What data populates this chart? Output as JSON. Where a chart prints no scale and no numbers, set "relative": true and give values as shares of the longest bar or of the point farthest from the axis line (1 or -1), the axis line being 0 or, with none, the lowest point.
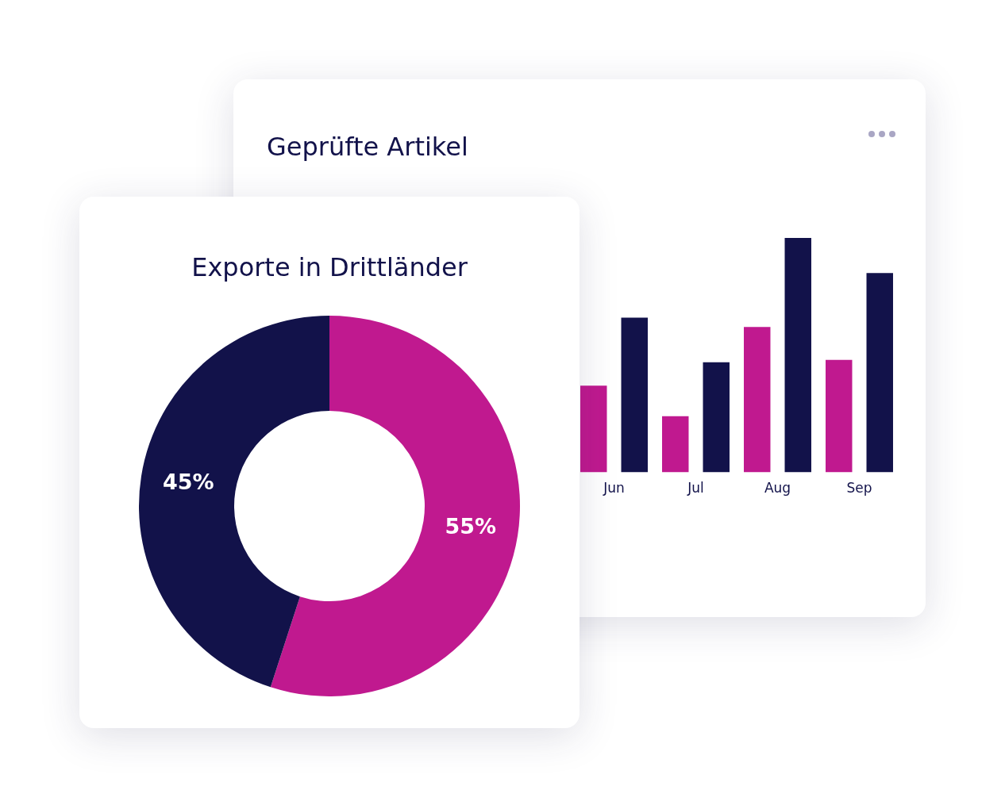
{
  "chart_data": [
    {
      "type": "bar",
      "title": "Geprüfte Artikel",
      "categories": [
        "Jun",
        "Jul",
        "Aug",
        "Sep"
      ],
      "relative": true,
      "series": [
        {
          "color": "#c0198f",
          "values": [
            0.37,
            0.24,
            0.62,
            0.48
          ]
        },
        {
          "color": "#12124a",
          "values": [
            0.66,
            0.47,
            1,
            0.85
          ]
        }
      ]
    },
    {
      "type": "donut",
      "title": "Exporte in Drittländer",
      "categories": [
        null,
        null
      ],
      "values": [
        55,
        45
      ],
      "colors": [
        "#c0198f",
        "#12124a"
      ],
      "value_labels": [
        "55%",
        "45%"
      ]
    }
  ]
}
